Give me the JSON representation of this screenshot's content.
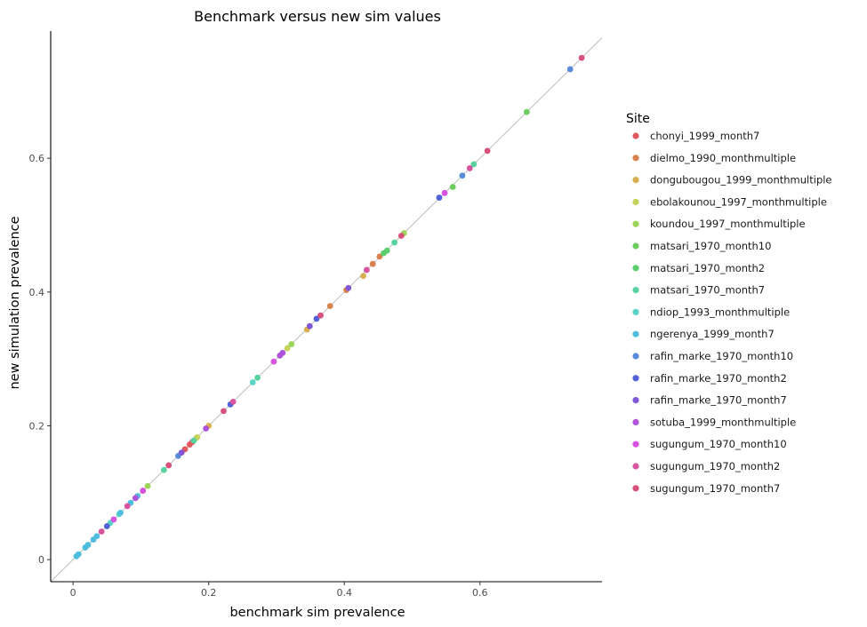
{
  "chart_data": {
    "type": "scatter",
    "title": "Benchmark versus new sim values",
    "xlabel": "benchmark sim prevalence",
    "ylabel": "new simulation prevalence",
    "xlim": [
      -0.033,
      0.78
    ],
    "ylim": [
      -0.033,
      0.79
    ],
    "xticks": [
      0,
      0.2,
      0.4,
      0.6
    ],
    "yticks": [
      0,
      0.2,
      0.4,
      0.6
    ],
    "x_tick_labels": [
      "0",
      "0.2",
      "0.4",
      "0.6"
    ],
    "y_tick_labels": [
      "0",
      "0.2",
      "0.4",
      "0.6"
    ],
    "grid": false,
    "reference_line": "y = x",
    "legend_title": "Site",
    "legend_position": "right",
    "series": [
      {
        "name": "chonyi_1999_month7",
        "color": "#E0585F",
        "points": [
          [
            0.165,
            0.165
          ],
          [
            0.172,
            0.172
          ],
          [
            0.176,
            0.176
          ]
        ]
      },
      {
        "name": "dielmo_1990_monthmultiple",
        "color": "#D8824F",
        "points": [
          [
            0.379,
            0.379
          ],
          [
            0.403,
            0.403
          ],
          [
            0.442,
            0.442
          ],
          [
            0.452,
            0.453
          ]
        ]
      },
      {
        "name": "dongubougou_1999_monthmultiple",
        "color": "#D8AE4F",
        "points": [
          [
            0.182,
            0.182
          ],
          [
            0.2,
            0.2
          ],
          [
            0.345,
            0.344
          ],
          [
            0.428,
            0.424
          ]
        ]
      },
      {
        "name": "ebolakounou_1997_monthmultiple",
        "color": "#C7D25A",
        "points": [
          [
            0.183,
            0.183
          ],
          [
            0.316,
            0.316
          ]
        ]
      },
      {
        "name": "koundou_1997_monthmultiple",
        "color": "#9DD45A",
        "points": [
          [
            0.11,
            0.11
          ],
          [
            0.322,
            0.322
          ],
          [
            0.488,
            0.488
          ]
        ]
      },
      {
        "name": "matsari_1970_month10",
        "color": "#6ACD5D",
        "points": [
          [
            0.56,
            0.557
          ],
          [
            0.669,
            0.669
          ]
        ]
      },
      {
        "name": "matsari_1970_month2",
        "color": "#5BCE6E",
        "points": [
          [
            0.458,
            0.458
          ],
          [
            0.463,
            0.462
          ]
        ]
      },
      {
        "name": "matsari_1970_month7",
        "color": "#58D39F",
        "points": [
          [
            0.134,
            0.134
          ],
          [
            0.178,
            0.178
          ],
          [
            0.272,
            0.272
          ],
          [
            0.474,
            0.474
          ],
          [
            0.591,
            0.591
          ]
        ]
      },
      {
        "name": "ndiop_1993_monthmultiple",
        "color": "#5BD4C8",
        "points": [
          [
            0.055,
            0.055
          ],
          [
            0.068,
            0.068
          ],
          [
            0.265,
            0.265
          ]
        ]
      },
      {
        "name": "ngerenya_1999_month7",
        "color": "#4FBDDD",
        "points": [
          [
            0.005,
            0.005
          ],
          [
            0.008,
            0.008
          ],
          [
            0.018,
            0.018
          ],
          [
            0.022,
            0.022
          ],
          [
            0.03,
            0.03
          ],
          [
            0.035,
            0.035
          ],
          [
            0.07,
            0.07
          ],
          [
            0.085,
            0.085
          ],
          [
            0.095,
            0.095
          ]
        ]
      },
      {
        "name": "rafin_marke_1970_month10",
        "color": "#588CD8",
        "points": [
          [
            0.155,
            0.155
          ],
          [
            0.574,
            0.574
          ],
          [
            0.733,
            0.733
          ]
        ]
      },
      {
        "name": "rafin_marke_1970_month2",
        "color": "#5261D8",
        "points": [
          [
            0.05,
            0.05
          ],
          [
            0.232,
            0.232
          ],
          [
            0.359,
            0.36
          ],
          [
            0.54,
            0.541
          ]
        ]
      },
      {
        "name": "rafin_marke_1970_month7",
        "color": "#7F57D8",
        "points": [
          [
            0.16,
            0.16
          ],
          [
            0.349,
            0.349
          ],
          [
            0.406,
            0.406
          ]
        ]
      },
      {
        "name": "sotuba_1999_monthmultiple",
        "color": "#AF54DA",
        "points": [
          [
            0.092,
            0.092
          ],
          [
            0.196,
            0.196
          ],
          [
            0.305,
            0.305
          ],
          [
            0.309,
            0.309
          ]
        ]
      },
      {
        "name": "sugungum_1970_month10",
        "color": "#D653E0",
        "points": [
          [
            0.06,
            0.06
          ],
          [
            0.103,
            0.103
          ],
          [
            0.296,
            0.296
          ],
          [
            0.548,
            0.548
          ]
        ]
      },
      {
        "name": "sugungum_1970_month2",
        "color": "#D9549E",
        "points": [
          [
            0.042,
            0.042
          ],
          [
            0.08,
            0.08
          ],
          [
            0.236,
            0.236
          ],
          [
            0.433,
            0.433
          ],
          [
            0.585,
            0.585
          ]
        ]
      },
      {
        "name": "sugungum_1970_month7",
        "color": "#D6527A",
        "points": [
          [
            0.141,
            0.141
          ],
          [
            0.222,
            0.222
          ],
          [
            0.365,
            0.365
          ],
          [
            0.484,
            0.484
          ],
          [
            0.611,
            0.611
          ],
          [
            0.75,
            0.75
          ]
        ]
      }
    ]
  }
}
